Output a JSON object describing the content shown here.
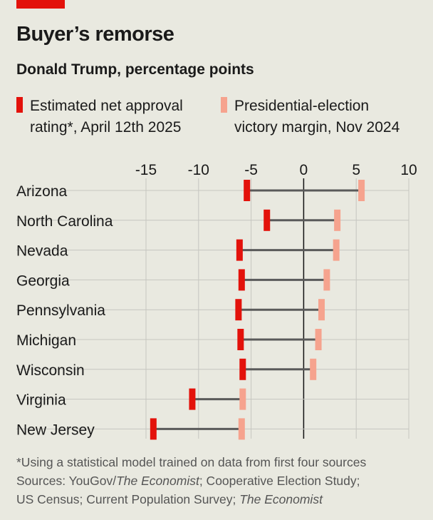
{
  "title": "Buyer’s remorse",
  "subtitle": "Donald Trump, percentage points",
  "legend": [
    {
      "label_line1": "Estimated net approval",
      "label_line2": "rating*, April 12th 2025",
      "color": "#e3120b"
    },
    {
      "label_line1": "Presidential-election",
      "label_line2": "victory margin, Nov 2024",
      "color": "#f6a38e"
    }
  ],
  "colors": {
    "background": "#e9e9e0",
    "approval": "#e3120b",
    "margin": "#f6a38e",
    "connector": "#5a5a5a",
    "accent": "#e3120b"
  },
  "chart_data": {
    "type": "dumbbell",
    "title": "Buyer’s remorse",
    "subtitle": "Donald Trump, percentage points",
    "xlim": [
      -15,
      10
    ],
    "xticks": [
      -15,
      -10,
      -5,
      0,
      5,
      10
    ],
    "xtick_labels": [
      "-15",
      "-10",
      "-5",
      "0",
      "5",
      "10"
    ],
    "categories": [
      "Arizona",
      "North Carolina",
      "Nevada",
      "Georgia",
      "Pennsylvania",
      "Michigan",
      "Wisconsin",
      "Virginia",
      "New Jersey"
    ],
    "series": [
      {
        "name": "Estimated net approval rating*, April 12th 2025",
        "values": [
          -5.4,
          -3.5,
          -6.1,
          -5.9,
          -6.2,
          -6.0,
          -5.8,
          -10.6,
          -14.3
        ]
      },
      {
        "name": "Presidential-election victory margin, Nov 2024",
        "values": [
          5.5,
          3.2,
          3.1,
          2.2,
          1.7,
          1.4,
          0.9,
          -5.8,
          -5.9
        ]
      }
    ]
  },
  "footnote": {
    "line1": "*Using a statistical model trained on data from first four sources",
    "sources_prefix": "Sources: YouGov/",
    "sources_italic1": "The Economist",
    "sources_rest": "; Cooperative Election Study;",
    "line3_prefix": "US Census; Current Population Survey; ",
    "line3_italic": "The Economist"
  }
}
